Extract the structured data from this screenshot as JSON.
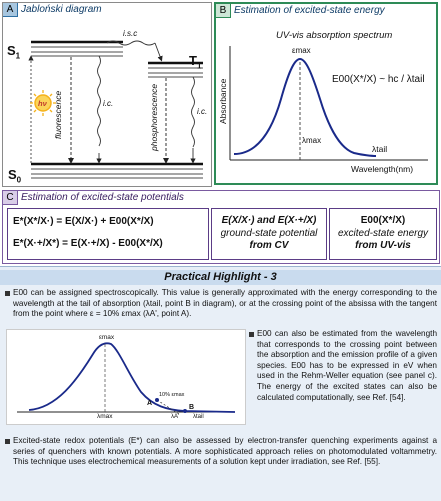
{
  "panelA": {
    "label": "A",
    "title": "Jabloński diagram",
    "s1": "S",
    "s1_sub": "1",
    "s0": "S",
    "s0_sub": "0",
    "t1": "T",
    "t1_sub": "1",
    "isc": "i.s.c",
    "ic_left": "i.c.",
    "ic_right": "i.c.",
    "fluorescence": "fluorescence",
    "phosphorescence": "phosphorescence",
    "hv": "hν",
    "colors": {
      "sun": "#f5b21b",
      "sun_text": "#c0392b"
    }
  },
  "panelB": {
    "label": "B",
    "title": "Estimation of excited-state energy",
    "subtitle": "UV-vis absorption spectrum",
    "ylabel": "Absorbance",
    "xlabel": "Wavelength(nm)",
    "epsilon_max": "εmax",
    "lambda_max": "λmax",
    "lambda_tail": "λtail",
    "equation": "E00(X*/X) ~ hc / λtail"
  },
  "panelC": {
    "label": "C",
    "title": "Estimation of excited-state potentials",
    "eq1": "E*(X*/X·) = E(X/X·) + E00(X*/X)",
    "eq2": "E*(X·+/X*) = E(X·+/X) - E00(X*/X)",
    "mid_line1": "E(X/X·) and E(X·+/X)",
    "mid_line2": "ground-state potential",
    "mid_line3": "from CV",
    "right_line1": "E00(X*/X)",
    "right_line2": "excited-state energy",
    "right_line3": "from UV-vis"
  },
  "highlight": {
    "title": "Practical Highlight - 3",
    "para1": "E00 can be assigned spectroscopically. This value is generally approximated with the energy corresponding to the wavelength at the tail of absorption (λtail, point B in diagram), or at the crossing point of the absissa with the tangent from the point where ε = 10% εmax (λA', point A).",
    "para2": "E00 can also be estimated from the wavelength that corresponds to the crossing point between the absorption and the emission profile of a given species. E00 has to be expressed in eV when used in the Rehm-Weller equation (see panel c). The energy of the excited states can also be calculated computationally, see Ref. [54].",
    "para3": "Excited-state redox potentials (E*) can also be assessed by electron-transfer quenching experiments against a series of quenchers with known potentials. A more sophisticated approach relies on photomodulated voltammetry. This technique uses electrochemical measurements of a solution kept under irradiation, see Ref. [55].",
    "mini": {
      "emax": "εmax",
      "lmax": "λmax",
      "pointA": "A",
      "pct": "10% εmax",
      "pointB": "B",
      "la": "λA'",
      "ltail": "λtail"
    }
  }
}
